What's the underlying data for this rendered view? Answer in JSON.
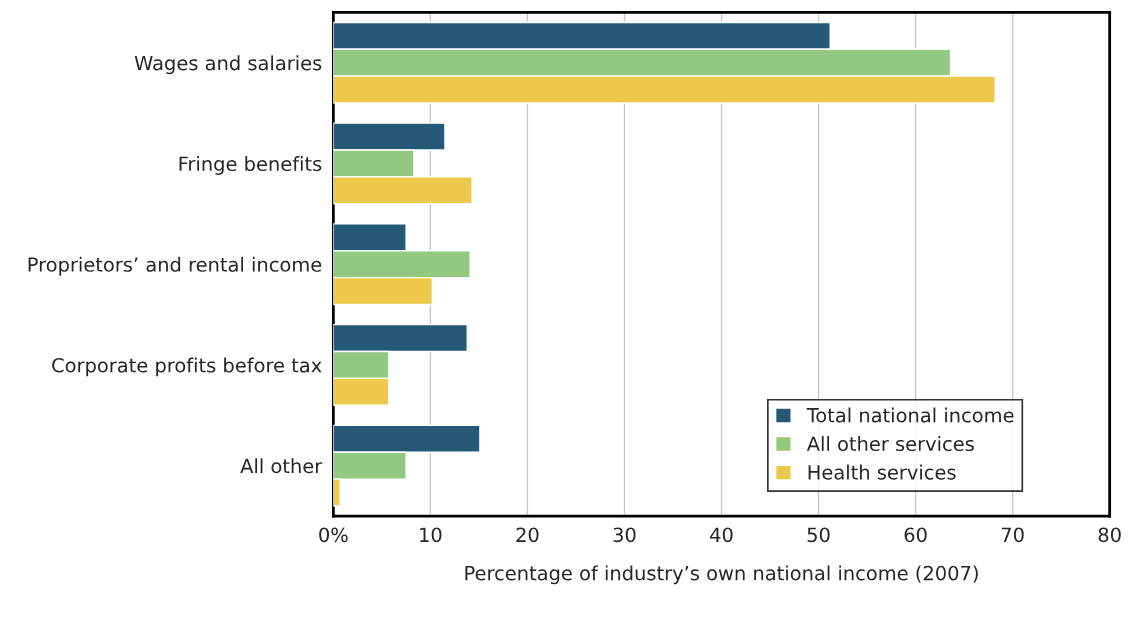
{
  "chart_data": {
    "type": "bar",
    "orientation": "horizontal",
    "categories": [
      "Wages and salaries",
      "Fringe benefits",
      "Proprietors’ and rental income",
      "Corporate profits before tax",
      "All other"
    ],
    "series": [
      {
        "name": "Total national income",
        "color": "#245a78",
        "values": [
          51.2,
          11.5,
          7.5,
          13.8,
          15.1
        ]
      },
      {
        "name": "All other services",
        "color": "#90c97f",
        "values": [
          63.6,
          8.3,
          14.1,
          5.7,
          7.5
        ]
      },
      {
        "name": "Health services",
        "color": "#ecc94b",
        "values": [
          68.2,
          14.3,
          10.2,
          5.7,
          0.7
        ]
      }
    ],
    "xlabel": "Percentage of industry’s own national income (2007)",
    "xlim": [
      0,
      80
    ],
    "xticks": [
      {
        "value": 0,
        "label": "0%"
      },
      10,
      20,
      30,
      40,
      50,
      60,
      70,
      80
    ],
    "grid": "x",
    "legend": "bottom right"
  }
}
